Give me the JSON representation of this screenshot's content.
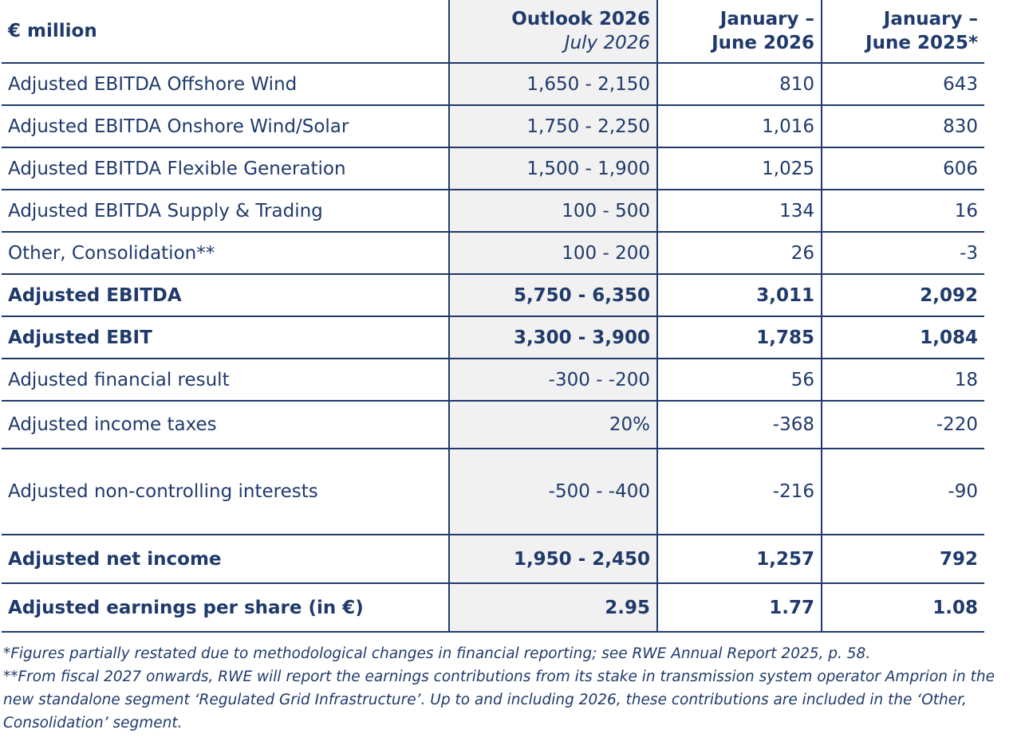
{
  "table": {
    "header": {
      "label": "€ million",
      "outlook_title": "Outlook 2026",
      "outlook_subtitle": "July 2026",
      "h1_line1": "January –",
      "h1_line2": "June 2026",
      "h2_line1": "January –",
      "h2_line2": "June 2025*"
    },
    "rows": [
      {
        "label": "Adjusted EBITDA Offshore Wind",
        "outlook": "1,650 - 2,150",
        "h1_2026": "810",
        "h1_2025": "643"
      },
      {
        "label": "Adjusted EBITDA Onshore Wind/Solar",
        "outlook": "1,750 - 2,250",
        "h1_2026": "1,016",
        "h1_2025": "830"
      },
      {
        "label": "Adjusted EBITDA Flexible Generation",
        "outlook": "1,500 - 1,900",
        "h1_2026": "1,025",
        "h1_2025": "606"
      },
      {
        "label": "Adjusted EBITDA Supply & Trading",
        "outlook": "100 - 500",
        "h1_2026": "134",
        "h1_2025": "16"
      },
      {
        "label": "Other, Consolidation**",
        "outlook": "100 - 200",
        "h1_2026": "26",
        "h1_2025": "-3"
      },
      {
        "label": "Adjusted EBITDA",
        "outlook": "5,750 - 6,350",
        "h1_2026": "3,011",
        "h1_2025": "2,092"
      },
      {
        "label": "Adjusted EBIT",
        "outlook": "3,300 - 3,900",
        "h1_2026": "1,785",
        "h1_2025": "1,084"
      },
      {
        "label": "Adjusted financial result",
        "outlook": "-300 - -200",
        "h1_2026": "56",
        "h1_2025": "18"
      },
      {
        "label": "Adjusted income taxes",
        "outlook": "20%",
        "h1_2026": "-368",
        "h1_2025": "-220"
      },
      {
        "label": "Adjusted non-controlling interests",
        "outlook": "-500 - -400",
        "h1_2026": "-216",
        "h1_2025": "-90"
      },
      {
        "label": "Adjusted net income",
        "outlook": "1,950 - 2,450",
        "h1_2026": "1,257",
        "h1_2025": "792"
      },
      {
        "label": "Adjusted earnings per share (in €)",
        "outlook": "2.95",
        "h1_2026": "1.77",
        "h1_2025": "1.08"
      }
    ]
  },
  "footnotes": {
    "note1": "*Figures partially restated due to methodological changes in financial reporting; see RWE Annual Report 2025, p. 58.",
    "note2": "**From fiscal 2027 onwards, RWE will report the earnings contributions from its stake in transmission system operator Amprion in the new standalone segment ‘Regulated Grid Infrastructure’. Up to and including 2026, these contributions are included in the ‘Other, Consolidation’ segment."
  },
  "colors": {
    "text": "#1f3a6b",
    "outlook_bg": "#f1f1f1"
  }
}
